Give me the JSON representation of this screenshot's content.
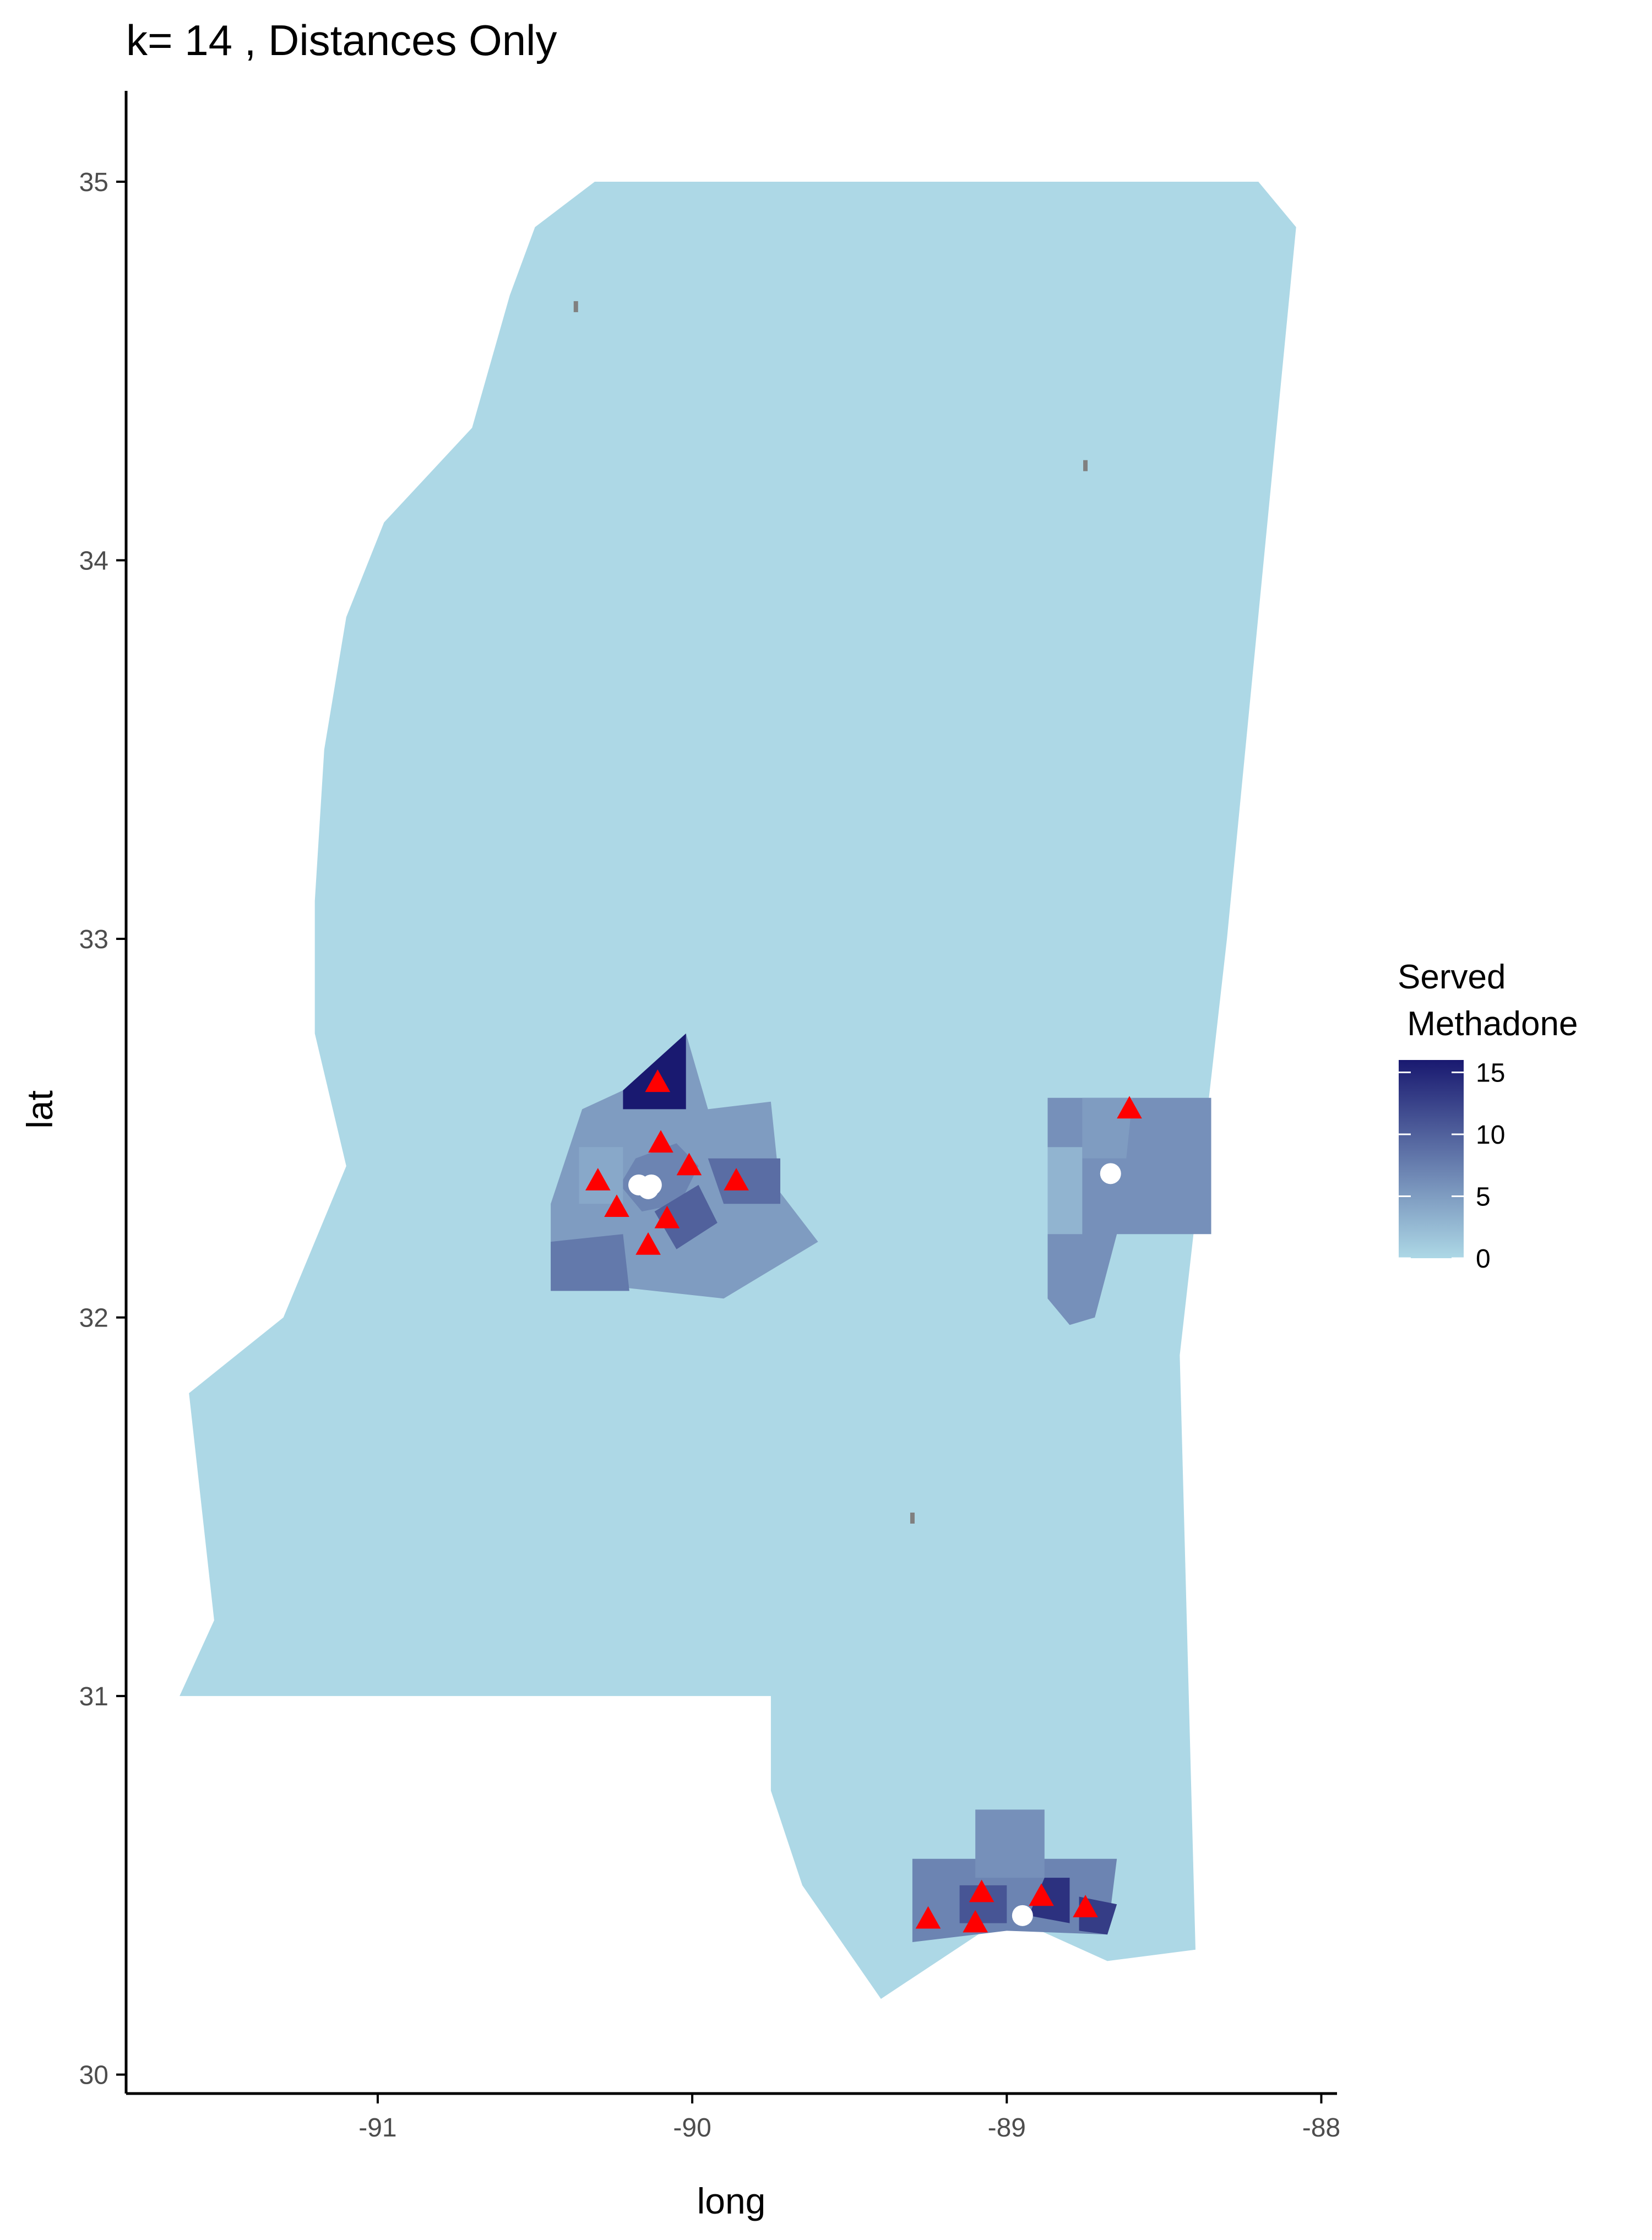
{
  "title": "k= 14 , Distances Only",
  "colors": {
    "state_fill": "#add8e6",
    "scale_low": "#add8e6",
    "scale_high": "#191970",
    "triangle": "#ff0000",
    "circle": "#ffffff",
    "speck": "#808080"
  },
  "chart_data": {
    "type": "choropleth-map",
    "xlabel": "long",
    "ylabel": "lat",
    "xlim": [
      -91.8,
      -87.95
    ],
    "ylim": [
      29.95,
      35.24
    ],
    "x_ticks": [
      -91,
      -90,
      -89,
      -88
    ],
    "y_ticks": [
      30,
      31,
      32,
      33,
      34,
      35
    ],
    "x_tick_labels": [
      "-91",
      "-90",
      "-89",
      "-88"
    ],
    "y_tick_labels": [
      "30",
      "31",
      "32",
      "33",
      "34",
      "35"
    ],
    "legend": {
      "title_line1": "Served",
      "title_line2": " Methadone",
      "range": [
        0,
        16
      ],
      "ticks": [
        15,
        10,
        5,
        0
      ],
      "tick_labels": [
        "15",
        "10",
        "5",
        "0"
      ]
    },
    "state_outline": [
      [
        -90.31,
        35.0
      ],
      [
        -88.2,
        35.0
      ],
      [
        -88.08,
        34.88
      ],
      [
        -88.3,
        33.0
      ],
      [
        -88.45,
        31.9
      ],
      [
        -88.4,
        30.33
      ],
      [
        -88.68,
        30.3
      ],
      [
        -89.0,
        30.42
      ],
      [
        -89.4,
        30.2
      ],
      [
        -89.65,
        30.5
      ],
      [
        -89.75,
        30.75
      ],
      [
        -89.75,
        31.0
      ],
      [
        -91.63,
        31.0
      ],
      [
        -91.52,
        31.2
      ],
      [
        -91.6,
        31.8
      ],
      [
        -91.3,
        32.0
      ],
      [
        -91.1,
        32.4
      ],
      [
        -91.2,
        32.75
      ],
      [
        -91.2,
        33.1
      ],
      [
        -91.17,
        33.5
      ],
      [
        -91.1,
        33.85
      ],
      [
        -90.98,
        34.1
      ],
      [
        -90.7,
        34.35
      ],
      [
        -90.58,
        34.7
      ],
      [
        -90.5,
        34.88
      ],
      [
        -90.31,
        35.0
      ]
    ],
    "regions": [
      {
        "poly": [
          [
            -90.22,
            32.6
          ],
          [
            -90.02,
            32.75
          ],
          [
            -89.95,
            32.55
          ],
          [
            -89.75,
            32.57
          ],
          [
            -89.72,
            32.33
          ],
          [
            -89.6,
            32.2
          ],
          [
            -89.9,
            32.05
          ],
          [
            -90.45,
            32.1
          ],
          [
            -90.45,
            32.3
          ],
          [
            -90.35,
            32.55
          ]
        ],
        "value": 5
      },
      {
        "poly": [
          [
            -90.22,
            32.6
          ],
          [
            -90.02,
            32.75
          ],
          [
            -90.02,
            32.55
          ],
          [
            -90.22,
            32.55
          ]
        ],
        "value": 16
      },
      {
        "poly": [
          [
            -90.18,
            32.42
          ],
          [
            -90.05,
            32.46
          ],
          [
            -89.98,
            32.4
          ],
          [
            -90.04,
            32.3
          ],
          [
            -90.16,
            32.28
          ],
          [
            -90.23,
            32.35
          ]
        ],
        "value": 7
      },
      {
        "poly": [
          [
            -90.45,
            32.2
          ],
          [
            -90.22,
            32.22
          ],
          [
            -90.2,
            32.07
          ],
          [
            -90.45,
            32.07
          ]
        ],
        "value": 8
      },
      {
        "poly": [
          [
            -90.12,
            32.28
          ],
          [
            -89.98,
            32.35
          ],
          [
            -89.92,
            32.25
          ],
          [
            -90.05,
            32.18
          ]
        ],
        "value": 10
      },
      {
        "poly": [
          [
            -89.95,
            32.42
          ],
          [
            -89.72,
            32.42
          ],
          [
            -89.72,
            32.3
          ],
          [
            -89.9,
            32.3
          ]
        ],
        "value": 9
      },
      {
        "poly": [
          [
            -90.36,
            32.45
          ],
          [
            -90.22,
            32.45
          ],
          [
            -90.22,
            32.3
          ],
          [
            -90.36,
            32.3
          ]
        ],
        "value": 4
      },
      {
        "poly": [
          [
            -88.87,
            32.58
          ],
          [
            -88.35,
            32.58
          ],
          [
            -88.35,
            32.22
          ],
          [
            -88.65,
            32.22
          ],
          [
            -88.72,
            32.0
          ],
          [
            -88.8,
            31.98
          ],
          [
            -88.87,
            32.05
          ]
        ],
        "value": 6
      },
      {
        "poly": [
          [
            -88.87,
            32.45
          ],
          [
            -88.76,
            32.45
          ],
          [
            -88.76,
            32.22
          ],
          [
            -88.87,
            32.22
          ]
        ],
        "value": 3
      },
      {
        "poly": [
          [
            -88.76,
            32.58
          ],
          [
            -88.6,
            32.58
          ],
          [
            -88.62,
            32.42
          ],
          [
            -88.76,
            32.42
          ]
        ],
        "value": 5
      },
      {
        "poly": [
          [
            -89.3,
            30.57
          ],
          [
            -88.65,
            30.57
          ],
          [
            -88.68,
            30.37
          ],
          [
            -89.0,
            30.38
          ],
          [
            -89.3,
            30.35
          ]
        ],
        "value": 7
      },
      {
        "poly": [
          [
            -89.1,
            30.7
          ],
          [
            -88.88,
            30.7
          ],
          [
            -88.88,
            30.52
          ],
          [
            -89.1,
            30.52
          ]
        ],
        "value": 6
      },
      {
        "poly": [
          [
            -88.88,
            30.52
          ],
          [
            -88.8,
            30.52
          ],
          [
            -88.8,
            30.4
          ],
          [
            -88.93,
            30.42
          ]
        ],
        "value": 14
      },
      {
        "poly": [
          [
            -88.77,
            30.47
          ],
          [
            -88.65,
            30.45
          ],
          [
            -88.68,
            30.37
          ],
          [
            -88.77,
            30.38
          ]
        ],
        "value": 13
      },
      {
        "poly": [
          [
            -89.15,
            30.5
          ],
          [
            -89.0,
            30.5
          ],
          [
            -89.0,
            30.4
          ],
          [
            -89.15,
            30.4
          ]
        ],
        "value": 11
      }
    ],
    "specks": [
      [
        -90.37,
        34.67
      ],
      [
        -88.75,
        34.25
      ],
      [
        -89.3,
        31.47
      ]
    ],
    "triangles": [
      [
        -90.11,
        32.62
      ],
      [
        -90.1,
        32.46
      ],
      [
        -90.01,
        32.4
      ],
      [
        -89.86,
        32.36
      ],
      [
        -90.3,
        32.36
      ],
      [
        -90.24,
        32.29
      ],
      [
        -90.08,
        32.26
      ],
      [
        -90.14,
        32.19
      ],
      [
        -88.61,
        32.55
      ],
      [
        -89.08,
        30.48
      ],
      [
        -88.89,
        30.47
      ],
      [
        -88.75,
        30.44
      ],
      [
        -89.25,
        30.41
      ],
      [
        -89.1,
        30.4
      ]
    ],
    "circles": [
      [
        -90.17,
        32.35
      ],
      [
        -90.13,
        32.35
      ],
      [
        -90.14,
        32.34
      ],
      [
        -88.67,
        32.38
      ],
      [
        -88.95,
        30.42
      ]
    ]
  }
}
